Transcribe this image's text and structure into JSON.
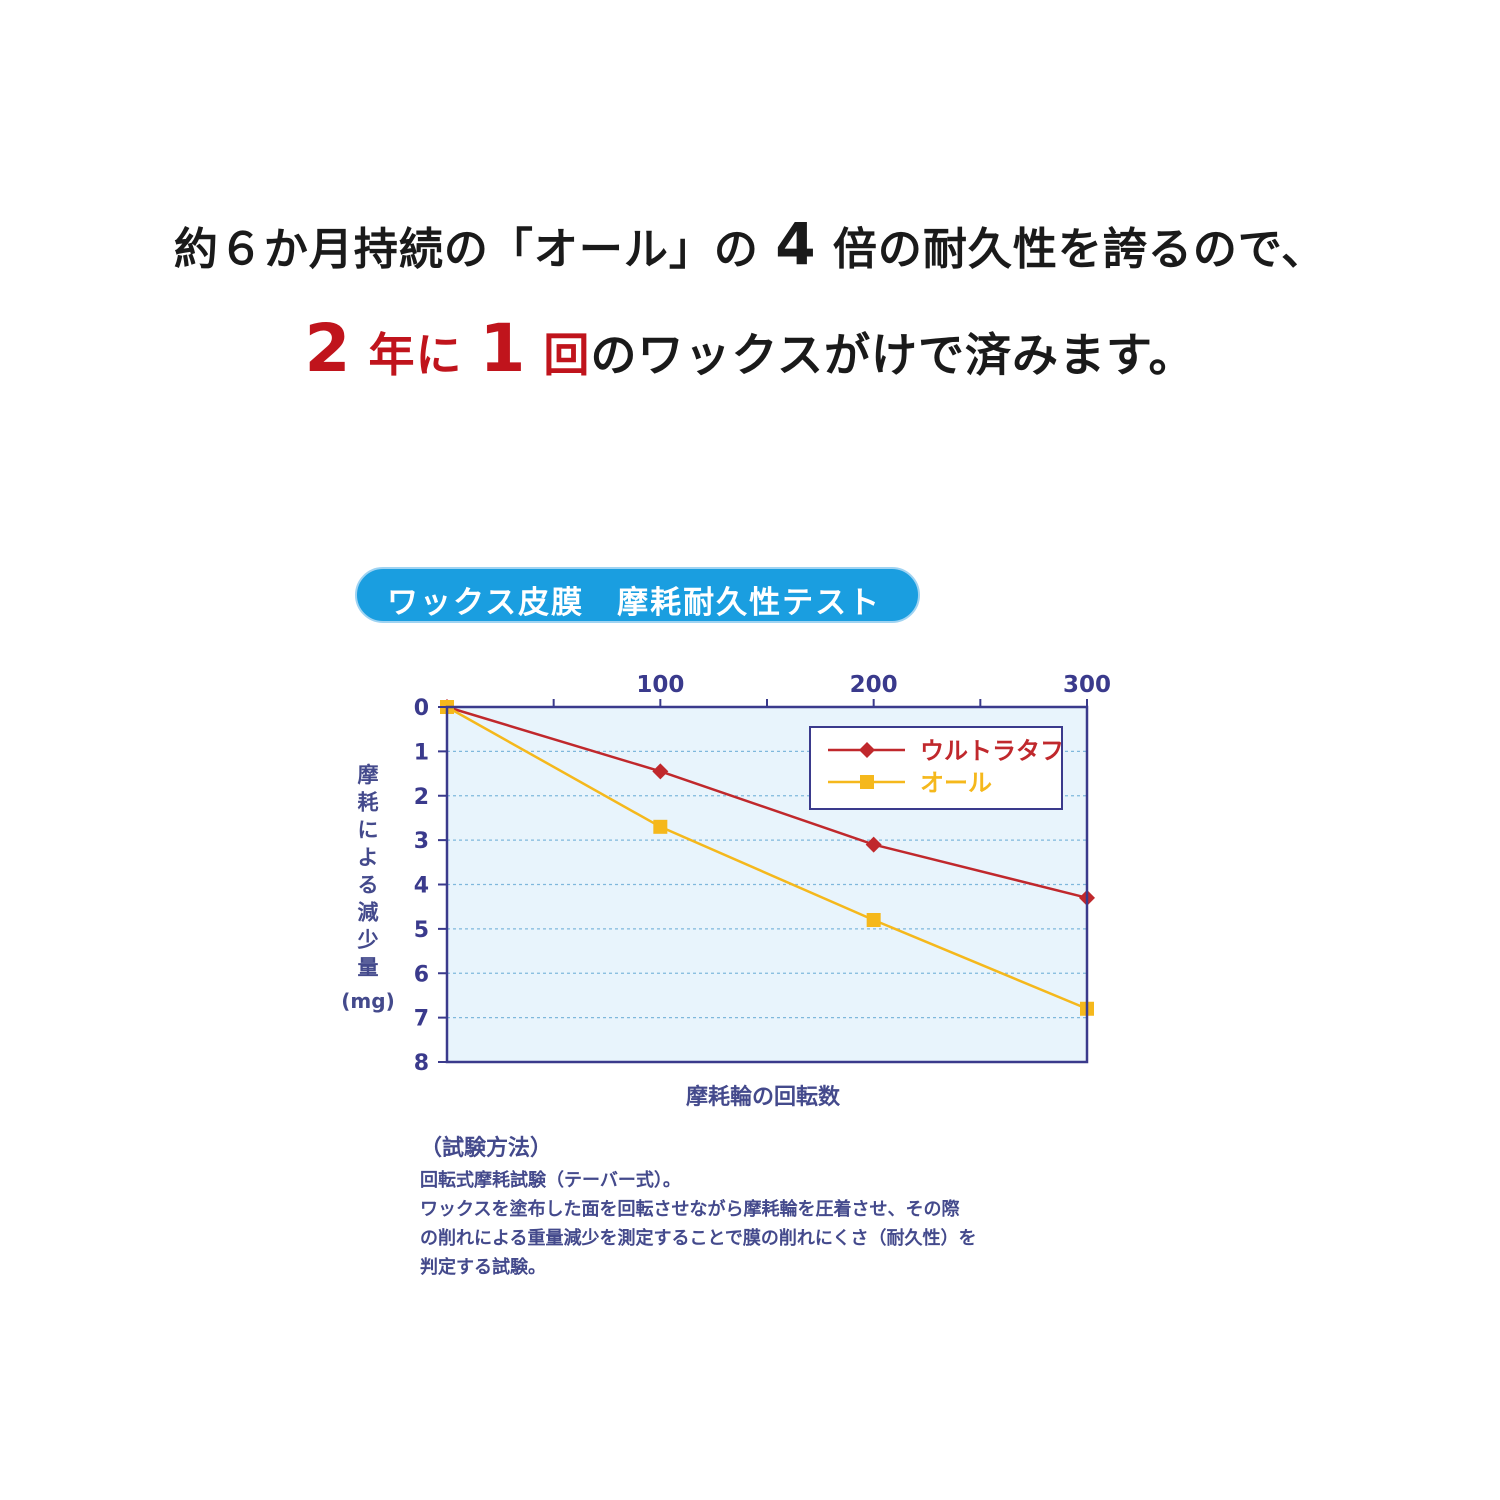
{
  "headline": {
    "line1_a": "約６か月持続の「オール」の ",
    "line1_num": "4",
    "line1_b": " 倍の耐久性を誇るので、",
    "line2_num1": "2",
    "line2_unit1": " 年に ",
    "line2_num2": "1",
    "line2_unit2": " 回",
    "line2_rest": "のワックスがけで済みます。"
  },
  "colors": {
    "accent_red": "#c0141c",
    "title_blue": "#1a9ee0",
    "axis_navy": "#3a3a8c",
    "plot_bg": "#e8f4fc",
    "ultratough": "#c0282c",
    "all": "#f5b81c"
  },
  "chart_data": {
    "type": "line",
    "title": "ワックス皮膜　摩耗耐久性テスト",
    "xlabel": "摩耗輪の回転数",
    "ylabel": "摩耗による減少量(mg)",
    "ylabel_chars": [
      "摩",
      "耗",
      "に",
      "よ",
      "る",
      "減",
      "少",
      "量",
      "(mg)"
    ],
    "x_ticks": [
      "100",
      "200",
      "300"
    ],
    "y_ticks": [
      "0",
      "1",
      "2",
      "3",
      "4",
      "5",
      "6",
      "7",
      "8"
    ],
    "xlim": [
      0,
      300
    ],
    "ylim": [
      0,
      8
    ],
    "y_inverted": true,
    "x_axis_position": "top",
    "grid": "horizontal-dashed",
    "legend_position": "top-right",
    "series": [
      {
        "name": "ウルトラタフ",
        "marker": "diamond",
        "color": "#c0282c",
        "x": [
          0,
          100,
          200,
          300
        ],
        "y": [
          0,
          1.45,
          3.1,
          4.3
        ]
      },
      {
        "name": "オール",
        "marker": "square",
        "color": "#f5b81c",
        "x": [
          0,
          100,
          200,
          300
        ],
        "y": [
          0,
          2.7,
          4.8,
          6.8
        ]
      }
    ]
  },
  "method": {
    "heading": "（試験方法）",
    "lines": [
      "回転式摩耗試験（テーバー式）。",
      "ワックスを塗布した面を回転させながら摩耗輪を圧着させ、その際",
      "の削れによる重量減少を測定することで膜の削れにくさ（耐久性）を",
      "判定する試験。"
    ]
  }
}
